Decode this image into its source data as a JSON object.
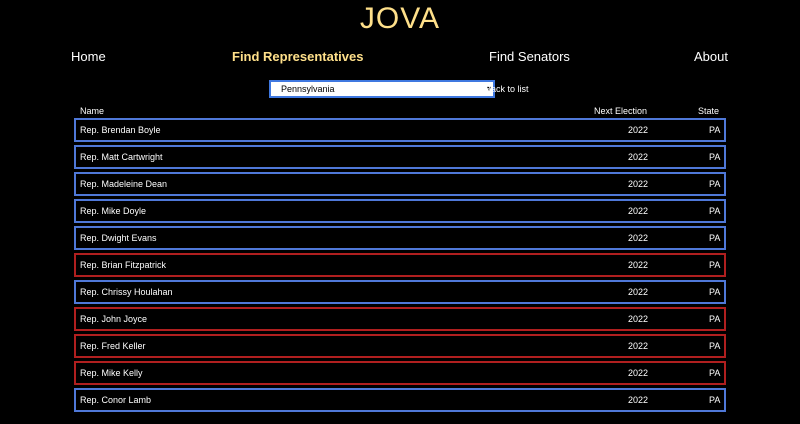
{
  "brand": {
    "title": "JOVA"
  },
  "nav": {
    "home": "Home",
    "representatives": "Find Representatives",
    "senators": "Find Senators",
    "about": "About"
  },
  "controls": {
    "state_selected": "Pennsylvania",
    "back_label": "Back to list"
  },
  "table": {
    "headers": {
      "name": "Name",
      "election": "Next Election",
      "state": "State"
    },
    "rows": [
      {
        "name": "Rep. Brendan Boyle",
        "election": "2022",
        "state": "PA",
        "party_color": "#4f78d8"
      },
      {
        "name": "Rep. Matt Cartwright",
        "election": "2022",
        "state": "PA",
        "party_color": "#4f78d8"
      },
      {
        "name": "Rep. Madeleine Dean",
        "election": "2022",
        "state": "PA",
        "party_color": "#4f78d8"
      },
      {
        "name": "Rep. Mike Doyle",
        "election": "2022",
        "state": "PA",
        "party_color": "#4f78d8"
      },
      {
        "name": "Rep. Dwight Evans",
        "election": "2022",
        "state": "PA",
        "party_color": "#4f78d8"
      },
      {
        "name": "Rep. Brian Fitzpatrick",
        "election": "2022",
        "state": "PA",
        "party_color": "#b01f1f"
      },
      {
        "name": "Rep. Chrissy Houlahan",
        "election": "2022",
        "state": "PA",
        "party_color": "#4f78d8"
      },
      {
        "name": "Rep. John Joyce",
        "election": "2022",
        "state": "PA",
        "party_color": "#b01f1f"
      },
      {
        "name": "Rep. Fred Keller",
        "election": "2022",
        "state": "PA",
        "party_color": "#b01f1f"
      },
      {
        "name": "Rep. Mike Kelly",
        "election": "2022",
        "state": "PA",
        "party_color": "#b01f1f"
      },
      {
        "name": "Rep. Conor Lamb",
        "election": "2022",
        "state": "PA",
        "party_color": "#4f78d8"
      }
    ]
  },
  "colors": {
    "accent": "#ffe08a",
    "democrat": "#4f78d8",
    "republican": "#b01f1f",
    "background": "#000000"
  }
}
